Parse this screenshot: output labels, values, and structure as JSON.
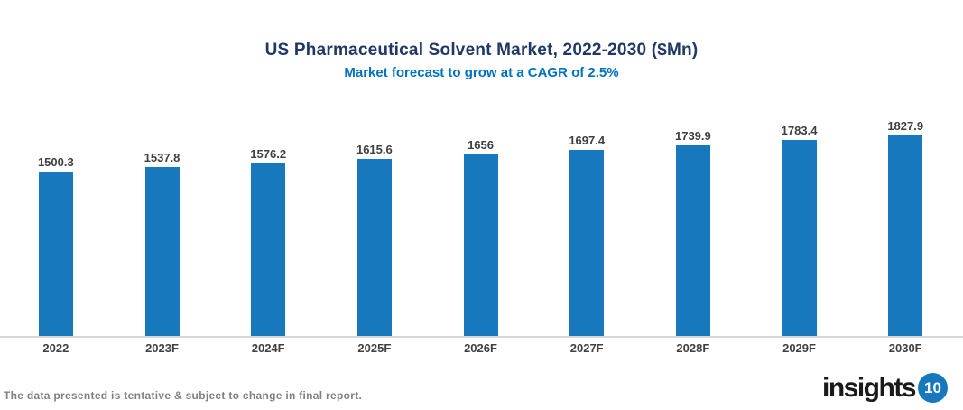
{
  "chart_data": {
    "type": "bar",
    "title": "US Pharmaceutical Solvent Market, 2022-2030 ($Mn)",
    "subtitle": "Market forecast to grow at a CAGR of 2.5%",
    "categories": [
      "2022",
      "2023F",
      "2024F",
      "2025F",
      "2026F",
      "2027F",
      "2028F",
      "2029F",
      "2030F"
    ],
    "values": [
      1500.3,
      1537.8,
      1576.2,
      1615.6,
      1656,
      1697.4,
      1739.9,
      1783.4,
      1827.9
    ],
    "value_labels": [
      "1500.3",
      "1537.8",
      "1576.2",
      "1615.6",
      "1656",
      "1697.4",
      "1739.9",
      "1783.4",
      "1827.9"
    ],
    "xlabel": "",
    "ylabel": "",
    "ylim": [
      0,
      2000
    ],
    "grid": false,
    "legend": false
  },
  "footer": {
    "disclaimer": "The data presented is tentative & subject to change in final report.",
    "logo": {
      "text": "insights",
      "badge": "10"
    }
  },
  "colors": {
    "background": "#FFFFFF",
    "title": "#1F3864",
    "subtitle": "#0070C0",
    "bar": "#1878BE",
    "data_label": "#404040",
    "axis_label": "#404040",
    "axis_line": "#D9D9D9",
    "disclaimer": "#808080",
    "logo_text": "#1A1A1A",
    "logo_badge_bg": "#1878BE",
    "logo_badge_text": "#FFFFFF"
  }
}
